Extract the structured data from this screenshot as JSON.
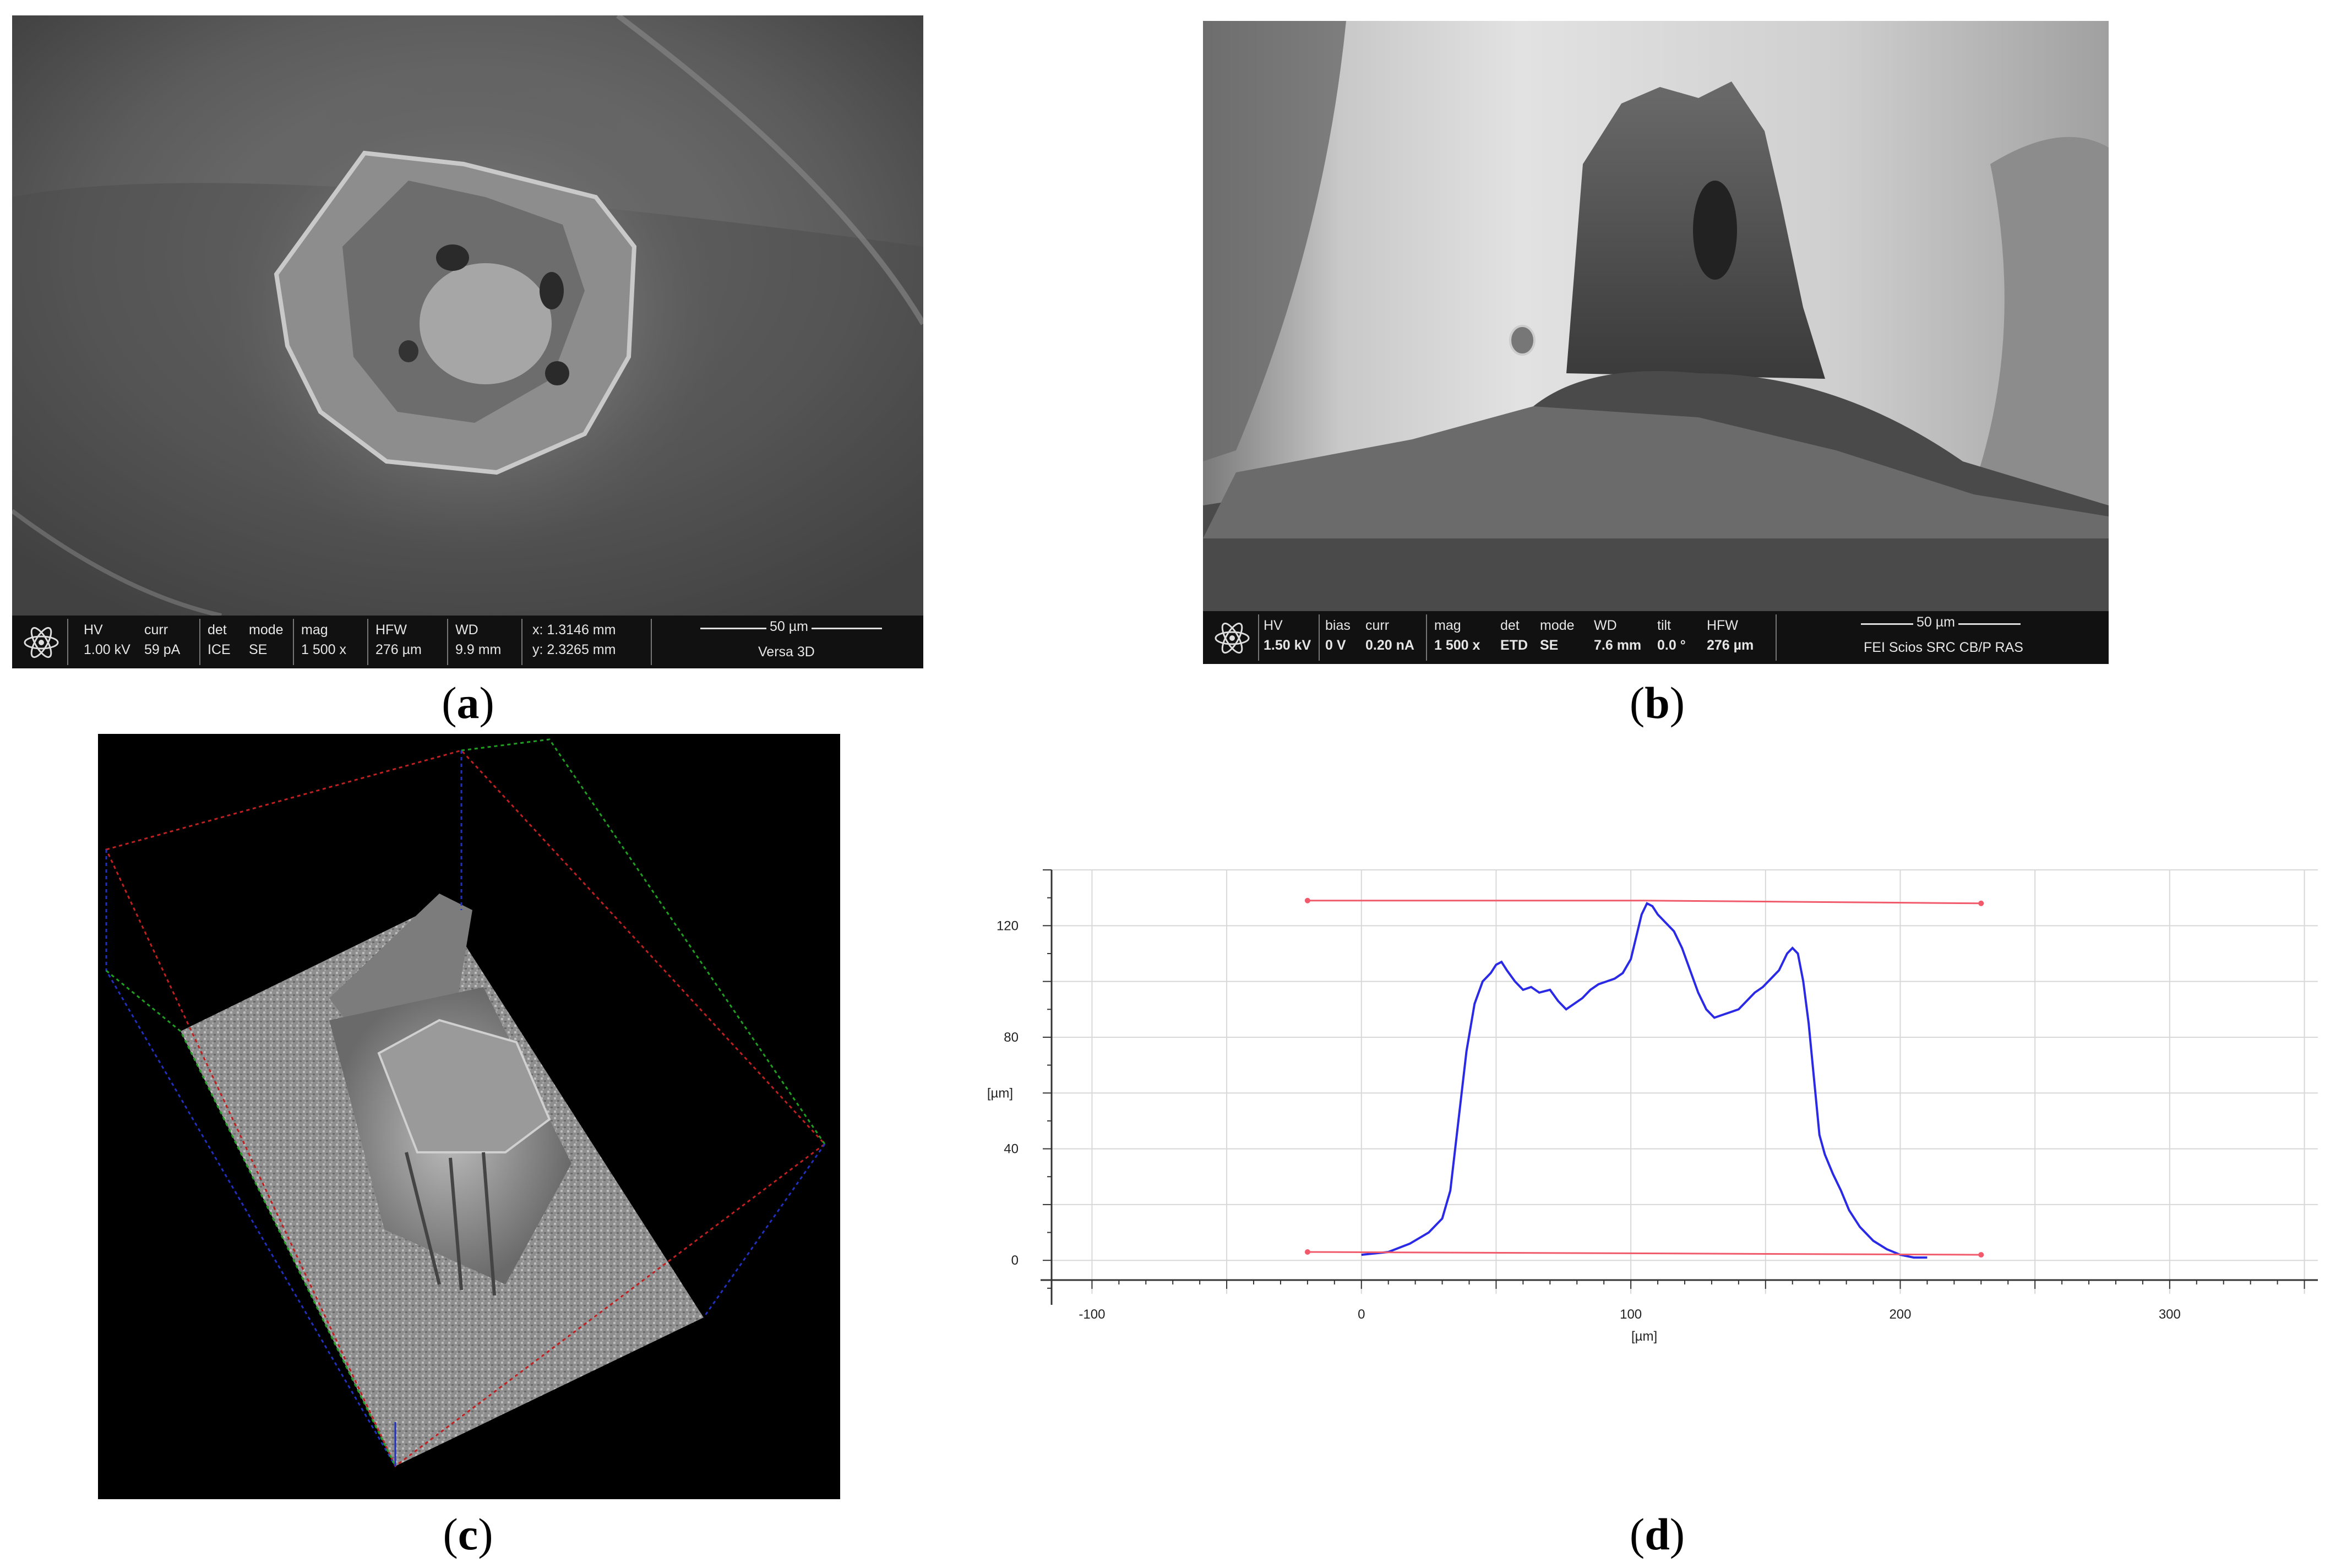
{
  "figure": {
    "panels": [
      {
        "id": "a",
        "caption_open": "(",
        "caption_letter": "a",
        "caption_close": ")",
        "sem_bar": {
          "hv_label": "HV",
          "hv_value": "1.00 kV",
          "curr_label": "curr",
          "curr_value": "59 pA",
          "det_label": "det",
          "det_value": "ICE",
          "mode_label": "mode",
          "mode_value": "SE",
          "mag_label": "mag",
          "mag_value": "1 500 x",
          "hfw_label": "HFW",
          "hfw_value": "276 µm",
          "wd_label": "WD",
          "wd_value": "9.9 mm",
          "x_value": "x: 1.3146 mm",
          "y_value": "y: 2.3265 mm",
          "scale_label": "50 µm",
          "instrument": "Versa 3D"
        }
      },
      {
        "id": "b",
        "caption_open": "(",
        "caption_letter": "b",
        "caption_close": ")",
        "sem_bar": {
          "hv_label": "HV",
          "hv_value": "1.50 kV",
          "bias_label": "bias",
          "bias_value": "0 V",
          "curr_label": "curr",
          "curr_value": "0.20 nA",
          "mag_label": "mag",
          "mag_value": "1 500 x",
          "det_label": "det",
          "det_value": "ETD",
          "mode_label": "mode",
          "mode_value": "SE",
          "wd_label": "WD",
          "wd_value": "7.6 mm",
          "tilt_label": "tilt",
          "tilt_value": "0.0 °",
          "hfw_label": "HFW",
          "hfw_value": "276 µm",
          "scale_label": "50 µm",
          "instrument": "FEI Scios SRC CB/P RAS"
        }
      },
      {
        "id": "c",
        "caption_open": "(",
        "caption_letter": "c",
        "caption_close": ")"
      },
      {
        "id": "d",
        "caption_open": "(",
        "caption_letter": "d",
        "caption_close": ")"
      }
    ]
  },
  "chart_data": {
    "type": "line",
    "xlabel": "[µm]",
    "ylabel": "[µm]",
    "xlim": [
      -115,
      355
    ],
    "ylim": [
      -12,
      140
    ],
    "x_ticks": [
      -100,
      0,
      100,
      200,
      300
    ],
    "y_ticks": [
      0,
      40,
      80,
      120
    ],
    "grid": true,
    "colors": {
      "profile": "#2a2ae6",
      "reference": "#f05a6a",
      "grid": "#d8d8d8"
    },
    "series": [
      {
        "style": "profile",
        "x": [
          0,
          10,
          18,
          25,
          30,
          33,
          36,
          39,
          42,
          45,
          48,
          50,
          52,
          54,
          57,
          60,
          63,
          66,
          70,
          73,
          76,
          79,
          82,
          85,
          88,
          91,
          94,
          97,
          100,
          102,
          104,
          106,
          108,
          110,
          113,
          116,
          119,
          122,
          125,
          128,
          131,
          134,
          137,
          140,
          143,
          146,
          149,
          152,
          155,
          158,
          160,
          162,
          164,
          166,
          168,
          170,
          172,
          175,
          178,
          181,
          185,
          190,
          195,
          200,
          205,
          210
        ],
        "y": [
          2,
          3,
          6,
          10,
          15,
          25,
          50,
          75,
          92,
          100,
          103,
          106,
          107,
          104,
          100,
          97,
          98,
          96,
          97,
          93,
          90,
          92,
          94,
          97,
          99,
          100,
          101,
          103,
          108,
          116,
          124,
          128,
          127,
          124,
          121,
          118,
          112,
          104,
          96,
          90,
          87,
          88,
          89,
          90,
          93,
          96,
          98,
          101,
          104,
          110,
          112,
          110,
          100,
          85,
          65,
          45,
          38,
          31,
          25,
          18,
          12,
          7,
          4,
          2,
          1,
          1
        ]
      },
      {
        "style": "reference",
        "x": [
          -20,
          105,
          230
        ],
        "y": [
          129,
          129,
          128
        ]
      },
      {
        "style": "reference",
        "x": [
          -20,
          105,
          230
        ],
        "y": [
          3,
          2.5,
          2
        ]
      }
    ]
  }
}
